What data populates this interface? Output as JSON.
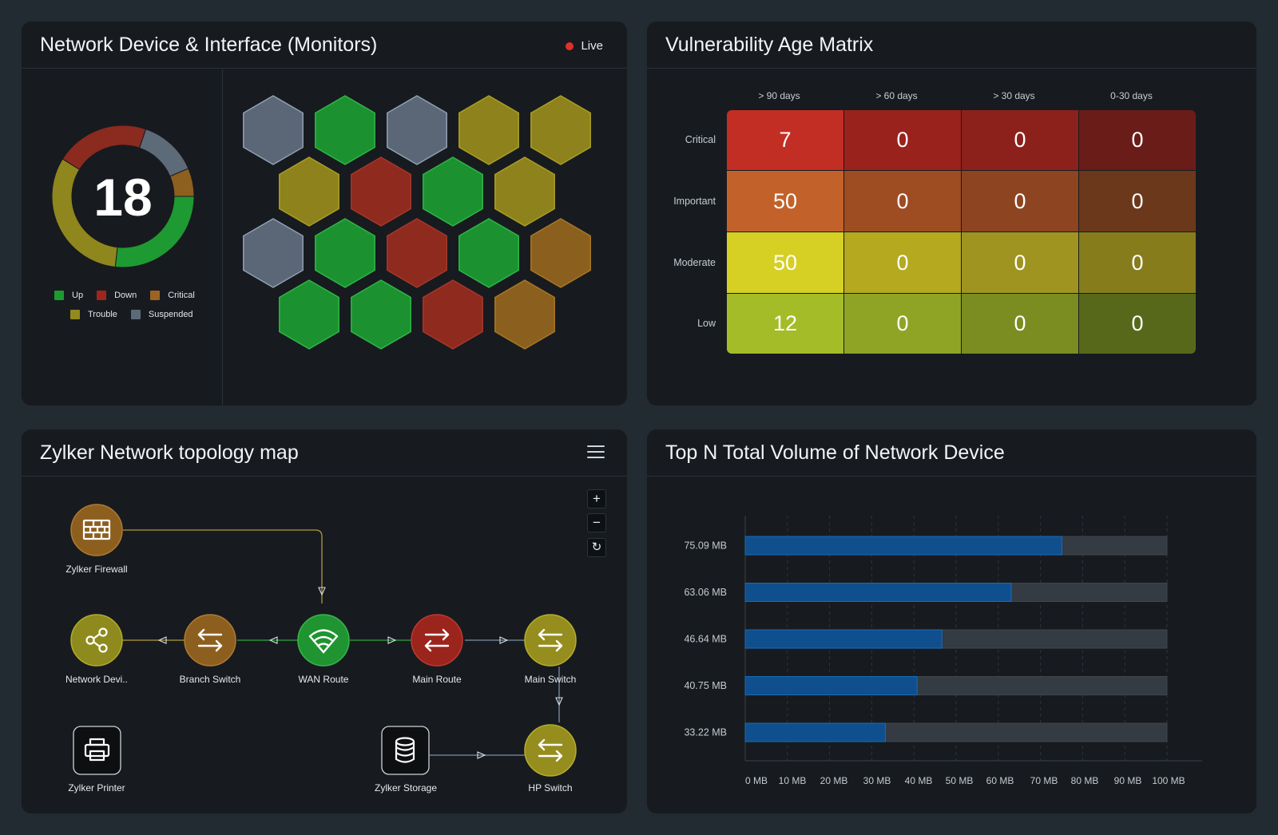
{
  "panels": {
    "monitors": {
      "title": "Network Device & Interface (Monitors)",
      "live_label": "Live",
      "total": "18",
      "donut": [
        {
          "status": "Up",
          "value": 5,
          "color": "#1e9a32"
        },
        {
          "status": "Trouble",
          "value": 6,
          "color": "#8f861d"
        },
        {
          "status": "Down",
          "value": 4,
          "color": "#8b2a1f"
        },
        {
          "status": "Suspended",
          "value": 2.5,
          "color": "#5d6a78"
        },
        {
          "status": "Critical",
          "value": 1.2,
          "color": "#8d6020"
        }
      ],
      "legend": [
        {
          "label": "Up",
          "color": "#1e9a32"
        },
        {
          "label": "Down",
          "color": "#9f261e"
        },
        {
          "label": "Critical",
          "color": "#9c6422"
        },
        {
          "label": "Trouble",
          "color": "#938a1e"
        },
        {
          "label": "Suspended",
          "color": "#5c6a78"
        }
      ],
      "hex_rows": [
        [
          "Suspended",
          "Up",
          "Suspended",
          "Trouble",
          "Trouble"
        ],
        [
          "Trouble",
          "Down",
          "Up",
          "Trouble"
        ],
        [
          "Suspended",
          "Up",
          "Down",
          "Up",
          "Critical"
        ],
        [
          "Up",
          "Up",
          "Down",
          "Critical"
        ]
      ],
      "status_colors": {
        "Up": {
          "fill": "#1c9130",
          "stroke": "#2fb646"
        },
        "Down": {
          "fill": "#8e2a1e",
          "stroke": "#a8372a"
        },
        "Critical": {
          "fill": "#8b5f1d",
          "stroke": "#a97726"
        },
        "Trouble": {
          "fill": "#8e821c",
          "stroke": "#aa9e26"
        },
        "Suspended": {
          "fill": "#5b6776",
          "stroke": "#8fa0b4"
        }
      }
    },
    "matrix": {
      "title": "Vulnerability Age Matrix",
      "columns": [
        "> 90 days",
        "> 60 days",
        "> 30 days",
        "0-30 days"
      ],
      "rows": [
        {
          "label": "Critical",
          "values": [
            "7",
            "0",
            "0",
            "0"
          ],
          "colors": [
            "#c22e24",
            "#9a221c",
            "#8c211b",
            "#6a1c19"
          ]
        },
        {
          "label": "Important",
          "values": [
            "50",
            "0",
            "0",
            "0"
          ],
          "colors": [
            "#c2622a",
            "#9e4c22",
            "#8c4520",
            "#6b381c"
          ]
        },
        {
          "label": "Moderate",
          "values": [
            "50",
            "0",
            "0",
            "0"
          ],
          "colors": [
            "#d6cf24",
            "#b4a91f",
            "#a09420",
            "#867c1c"
          ]
        },
        {
          "label": "Low",
          "values": [
            "12",
            "0",
            "0",
            "0"
          ],
          "colors": [
            "#a4bc28",
            "#8fa424",
            "#7b8d21",
            "#58681b"
          ]
        }
      ]
    },
    "topology": {
      "title": "Zylker Network topology map",
      "zoom_in": "+",
      "zoom_out": "−",
      "reset": "↻",
      "nodes": {
        "firewall": {
          "label": "Zylker Firewall",
          "icon": "firewall-icon",
          "color": "#8d5f1f"
        },
        "network_device": {
          "label": "Network Devi..",
          "icon": "share-icon",
          "color": "#8f8a1e"
        },
        "branch_switch": {
          "label": "Branch Switch",
          "icon": "switch-arrows-icon",
          "color": "#8d5f1f"
        },
        "wan_route": {
          "label": "WAN Route",
          "icon": "wifi-icon",
          "color": "#1f9431"
        },
        "main_route": {
          "label": "Main Route",
          "icon": "switch-arrows-icon",
          "color": "#9b241d"
        },
        "main_switch": {
          "label": "Main Switch",
          "icon": "switch-arrows-icon",
          "color": "#958d1e"
        },
        "printer": {
          "label": "Zylker Printer",
          "icon": "printer-icon",
          "color": "#ffffff"
        },
        "storage": {
          "label": "Zylker Storage",
          "icon": "database-icon",
          "color": "#ffffff"
        },
        "hp_switch": {
          "label": "HP Switch",
          "icon": "switch-arrows-icon",
          "color": "#958d1e"
        }
      }
    },
    "volume": {
      "title": "Top N Total Volume of Network Device"
    }
  },
  "chart_data": {
    "type": "bar",
    "orientation": "horizontal",
    "title": "Top N Total Volume of Network Device",
    "categories": [
      "75.09 MB",
      "63.06 MB",
      "46.64 MB",
      "40.75 MB",
      "33.22 MB"
    ],
    "values": [
      75.09,
      63.06,
      46.64,
      40.75,
      33.22
    ],
    "max": 100,
    "xlim": [
      0,
      100
    ],
    "xticks": [
      "0 MB",
      "10 MB",
      "20 MB",
      "30 MB",
      "40 MB",
      "50 MB",
      "60 MB",
      "70 MB",
      "80 MB",
      "90 MB",
      "100 MB"
    ],
    "grid": true,
    "bar_color": "#0f4f8e",
    "track_color": "#343b42"
  }
}
